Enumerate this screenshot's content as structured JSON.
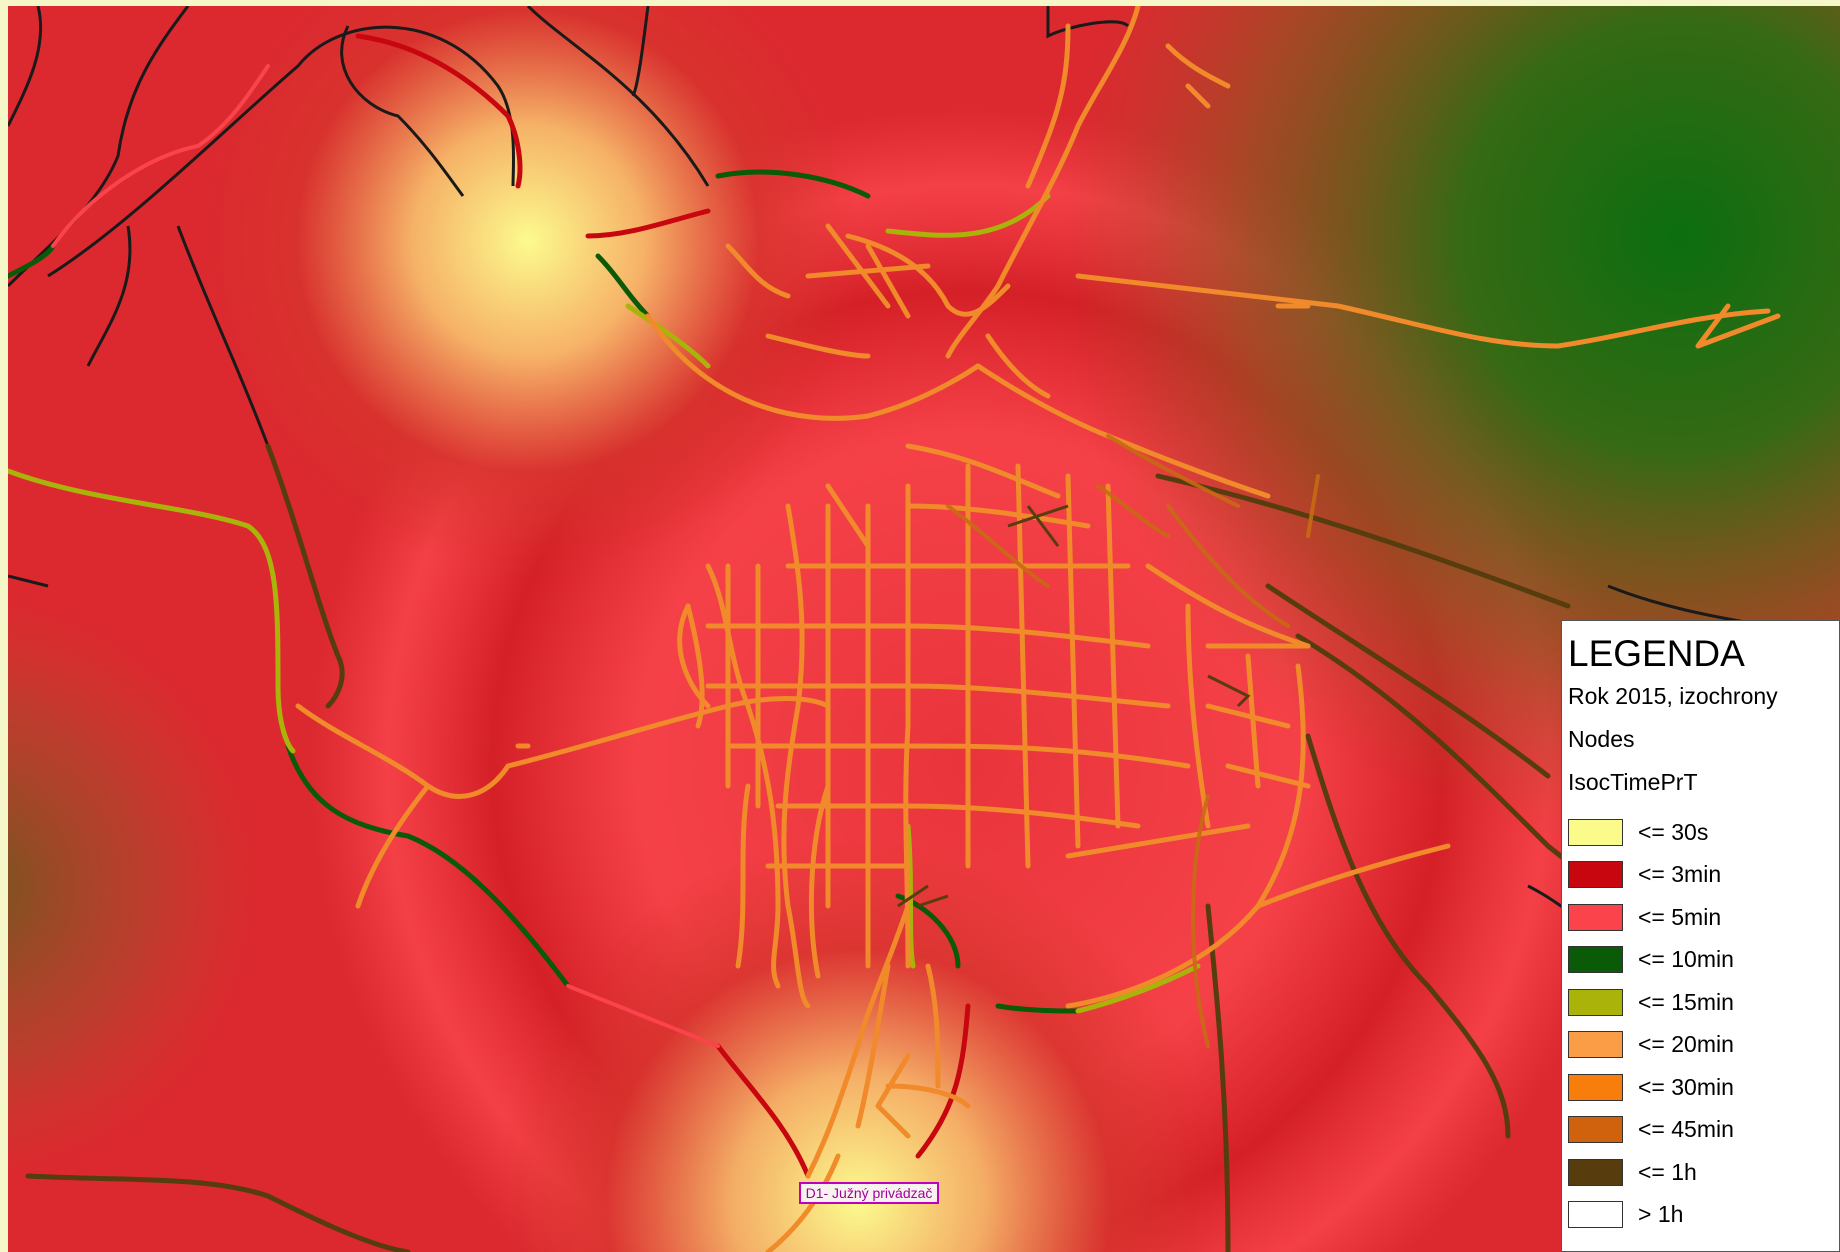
{
  "legend": {
    "title": "LEGENDA",
    "layer": "Rok 2015, izochrony",
    "nodes": "Nodes",
    "attribute": "IsocTimePrT",
    "classes": [
      {
        "label": "<= 30s",
        "color": "#fbfb8c"
      },
      {
        "label": "<= 3min",
        "color": "#c8060f"
      },
      {
        "label": "<= 5min",
        "color": "#fa434b"
      },
      {
        "label": "<= 10min",
        "color": "#0b5a08"
      },
      {
        "label": "<= 15min",
        "color": "#aab30a"
      },
      {
        "label": "<= 20min",
        "color": "#fb9d47"
      },
      {
        "label": "<= 30min",
        "color": "#f77d0c"
      },
      {
        "label": "<= 45min",
        "color": "#d0620e"
      },
      {
        "label": "<= 1h",
        "color": "#573d0e"
      },
      {
        "label": "> 1h",
        "color": "#ffffff"
      }
    ]
  },
  "map": {
    "place_label": "D1- Južný privádzač",
    "colors": {
      "base": "#e8343a",
      "hot_spot": "#fbfb8c",
      "far_green": "#0b6e10",
      "road_main": "#f08a2a",
      "road_far": "#573d0e",
      "road_outside": "#1a1a1a"
    }
  }
}
